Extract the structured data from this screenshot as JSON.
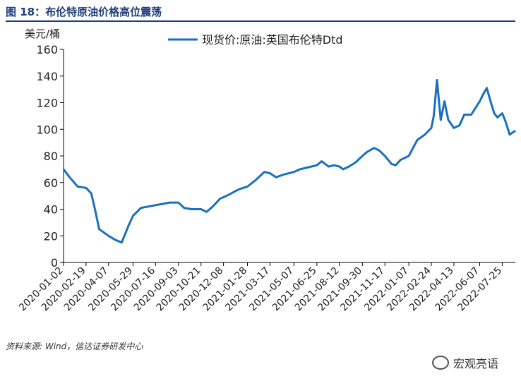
{
  "figure": {
    "title": "图 18：布伦特原油价格高位震荡",
    "source": "资料来源: Wind，信达证券研发中心",
    "watermark": "宏观亮语"
  },
  "chart_data": {
    "type": "line",
    "ylabel": "美元/桶",
    "ylim": [
      0,
      160
    ],
    "yticks": [
      0,
      20,
      40,
      60,
      80,
      100,
      120,
      140,
      160
    ],
    "xlim": [
      "2020-01-02",
      "2022-08-22"
    ],
    "xticks": [
      "2020-01-02",
      "2020-02-19",
      "2020-04-07",
      "2020-05-29",
      "2020-07-16",
      "2020-09-03",
      "2020-10-21",
      "2020-12-08",
      "2021-01-28",
      "2021-03-17",
      "2021-05-07",
      "2021-06-25",
      "2021-08-12",
      "2021-09-30",
      "2021-11-17",
      "2022-01-07",
      "2022-02-24",
      "2022-04-13",
      "2022-06-07",
      "2022-07-25"
    ],
    "legend_position": "top",
    "grid": false,
    "series": [
      {
        "name": "现货价:原油:英国布伦特Dtd",
        "color": "#1a6fbf",
        "x": [
          "2020-01-02",
          "2020-01-15",
          "2020-02-01",
          "2020-02-19",
          "2020-03-01",
          "2020-03-09",
          "2020-03-18",
          "2020-03-30",
          "2020-04-07",
          "2020-04-21",
          "2020-05-05",
          "2020-05-20",
          "2020-05-29",
          "2020-06-15",
          "2020-07-01",
          "2020-07-16",
          "2020-08-01",
          "2020-08-15",
          "2020-09-03",
          "2020-09-15",
          "2020-10-01",
          "2020-10-21",
          "2020-11-02",
          "2020-11-15",
          "2020-12-01",
          "2020-12-08",
          "2020-12-20",
          "2021-01-10",
          "2021-01-28",
          "2021-02-15",
          "2021-03-05",
          "2021-03-17",
          "2021-03-30",
          "2021-04-15",
          "2021-05-07",
          "2021-05-20",
          "2021-06-01",
          "2021-06-25",
          "2021-07-05",
          "2021-07-20",
          "2021-08-01",
          "2021-08-12",
          "2021-08-20",
          "2021-09-01",
          "2021-09-15",
          "2021-09-30",
          "2021-10-10",
          "2021-10-25",
          "2021-11-05",
          "2021-11-17",
          "2021-12-01",
          "2021-12-10",
          "2021-12-20",
          "2022-01-07",
          "2022-01-25",
          "2022-02-10",
          "2022-02-24",
          "2022-03-01",
          "2022-03-08",
          "2022-03-16",
          "2022-03-24",
          "2022-04-01",
          "2022-04-13",
          "2022-04-25",
          "2022-05-05",
          "2022-05-20",
          "2022-06-07",
          "2022-06-14",
          "2022-06-22",
          "2022-07-01",
          "2022-07-08",
          "2022-07-15",
          "2022-07-25",
          "2022-08-01",
          "2022-08-10",
          "2022-08-22"
        ],
        "y": [
          70,
          64,
          57,
          56,
          52,
          40,
          25,
          22,
          20,
          17,
          15,
          28,
          35,
          41,
          42,
          43,
          44,
          45,
          45,
          41,
          40,
          40,
          38,
          42,
          48,
          49,
          51,
          55,
          57,
          62,
          68,
          67,
          64,
          66,
          68,
          70,
          71,
          73,
          76,
          72,
          73,
          72,
          70,
          72,
          75,
          80,
          83,
          86,
          84,
          80,
          74,
          73,
          77,
          80,
          92,
          96,
          101,
          110,
          137,
          107,
          121,
          107,
          101,
          103,
          111,
          111,
          121,
          126,
          131,
          120,
          112,
          109,
          112,
          106,
          96,
          99
        ]
      }
    ]
  }
}
